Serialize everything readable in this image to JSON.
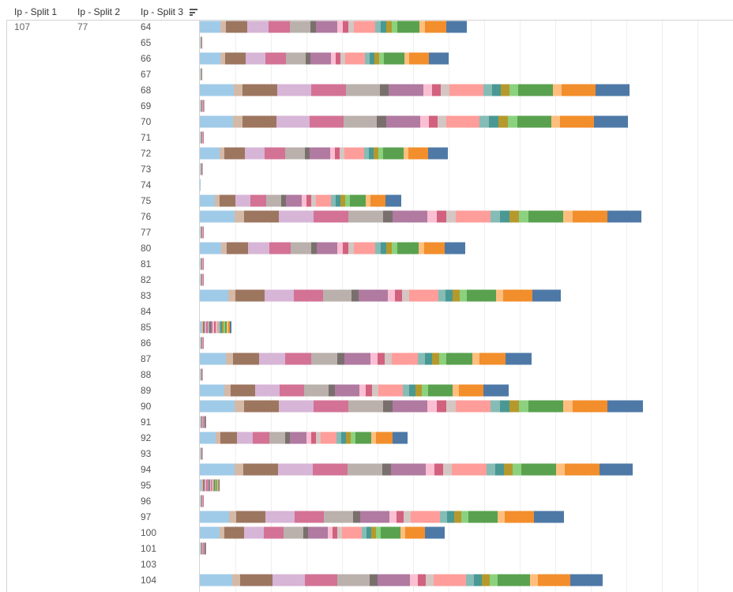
{
  "headers": {
    "col1": "Ip - Split 1",
    "col2": "Ip - Split 2",
    "col3": "Ip - Split 3",
    "sort_icon": "sort-descending-icon"
  },
  "row_header": {
    "split1": "107",
    "split2": "77"
  },
  "chart_data": {
    "type": "bar",
    "orientation": "horizontal",
    "stacked": true,
    "xlabel": "",
    "ylabel": "",
    "grid": true,
    "categories": [
      "64",
      "65",
      "66",
      "67",
      "68",
      "69",
      "70",
      "71",
      "72",
      "73",
      "74",
      "75",
      "76",
      "77",
      "80",
      "81",
      "82",
      "83",
      "84",
      "85",
      "86",
      "87",
      "88",
      "89",
      "90",
      "91",
      "92",
      "93",
      "94",
      "95",
      "96",
      "97",
      "100",
      "101",
      "103",
      "104"
    ],
    "segment_colors": [
      "#a0cbe8",
      "#d4b9a7",
      "#9d7660",
      "#d7b5d6",
      "#d37295",
      "#bab0ac",
      "#79706e",
      "#b07aa1",
      "#fabfd2",
      "#d1617e",
      "#d4c6c2",
      "#ff9d9a",
      "#86bcb6",
      "#499894",
      "#b6992d",
      "#8cd17d",
      "#59a14f",
      "#ffbe7d",
      "#f28e2b",
      "#4e79a7"
    ],
    "series_widths": [
      [
        26,
        7,
        27,
        27,
        27,
        26,
        7,
        27,
        7,
        7,
        7,
        27,
        7,
        7,
        7,
        7,
        28,
        7,
        27,
        26
      ],
      [
        1,
        1,
        1,
        0,
        0,
        0,
        0,
        0,
        0,
        0,
        0,
        0,
        0,
        0,
        0,
        0,
        0,
        0,
        0,
        0
      ],
      [
        26,
        6,
        26,
        25,
        26,
        25,
        6,
        26,
        6,
        6,
        6,
        25,
        6,
        6,
        6,
        6,
        26,
        6,
        25,
        25
      ],
      [
        1,
        1,
        1,
        0,
        0,
        0,
        0,
        0,
        0,
        0,
        0,
        0,
        0,
        0,
        0,
        0,
        0,
        0,
        0,
        0
      ],
      [
        43,
        11,
        44,
        43,
        44,
        43,
        11,
        44,
        11,
        11,
        11,
        43,
        11,
        11,
        11,
        11,
        44,
        11,
        43,
        43
      ],
      [
        1,
        1,
        1,
        1,
        1,
        1,
        0,
        0,
        0,
        0,
        0,
        0,
        0,
        0,
        0,
        0,
        0,
        0,
        0,
        0
      ],
      [
        42,
        12,
        43,
        42,
        43,
        42,
        12,
        43,
        11,
        11,
        11,
        42,
        12,
        12,
        12,
        12,
        43,
        11,
        43,
        43
      ],
      [
        1,
        1,
        1,
        1,
        1,
        0,
        0,
        0,
        0,
        0,
        0,
        0,
        0,
        0,
        0,
        0,
        0,
        0,
        0,
        0
      ],
      [
        25,
        6,
        26,
        25,
        26,
        25,
        6,
        26,
        6,
        6,
        6,
        25,
        6,
        6,
        6,
        6,
        26,
        6,
        25,
        25
      ],
      [
        1,
        1,
        1,
        1,
        0,
        0,
        0,
        0,
        0,
        0,
        0,
        0,
        0,
        0,
        0,
        0,
        0,
        0,
        0,
        0
      ],
      [
        1,
        0,
        0,
        0,
        0,
        0,
        0,
        0,
        0,
        0,
        0,
        0,
        0,
        0,
        0,
        0,
        0,
        0,
        0,
        0
      ],
      [
        19,
        6,
        20,
        19,
        20,
        19,
        6,
        20,
        6,
        6,
        6,
        19,
        6,
        6,
        6,
        6,
        20,
        6,
        19,
        20
      ],
      [
        44,
        12,
        44,
        44,
        44,
        44,
        12,
        44,
        12,
        12,
        12,
        44,
        12,
        12,
        12,
        12,
        44,
        12,
        44,
        43
      ],
      [
        1,
        1,
        1,
        1,
        1,
        0,
        0,
        0,
        0,
        0,
        0,
        0,
        0,
        0,
        0,
        0,
        0,
        0,
        0,
        0
      ],
      [
        27,
        7,
        27,
        27,
        27,
        26,
        7,
        26,
        7,
        7,
        7,
        27,
        7,
        7,
        7,
        7,
        27,
        7,
        26,
        26
      ],
      [
        1,
        1,
        1,
        1,
        1,
        0,
        0,
        0,
        0,
        0,
        0,
        0,
        0,
        0,
        0,
        0,
        0,
        0,
        0,
        0
      ],
      [
        1,
        1,
        1,
        1,
        1,
        0,
        0,
        0,
        0,
        0,
        0,
        0,
        0,
        0,
        0,
        0,
        0,
        0,
        0,
        0
      ],
      [
        36,
        9,
        37,
        37,
        37,
        36,
        9,
        37,
        9,
        9,
        9,
        37,
        9,
        9,
        9,
        9,
        37,
        9,
        37,
        36
      ],
      [
        0,
        0,
        0,
        0,
        0,
        0,
        0,
        0,
        0,
        0,
        0,
        0,
        0,
        0,
        0,
        0,
        0,
        0,
        0,
        0
      ],
      [
        2,
        2,
        2,
        2,
        2,
        2,
        2,
        2,
        2,
        2,
        2,
        2,
        2,
        2,
        2,
        2,
        2,
        2,
        2,
        2
      ],
      [
        1,
        1,
        1,
        1,
        1,
        0,
        0,
        0,
        0,
        0,
        0,
        0,
        0,
        0,
        0,
        0,
        0,
        0,
        0,
        0
      ],
      [
        33,
        9,
        33,
        33,
        33,
        33,
        9,
        33,
        9,
        9,
        9,
        33,
        9,
        9,
        9,
        9,
        33,
        9,
        33,
        33
      ],
      [
        1,
        1,
        1,
        1,
        0,
        0,
        0,
        0,
        0,
        0,
        0,
        0,
        0,
        0,
        0,
        0,
        0,
        0,
        0,
        0
      ],
      [
        31,
        8,
        31,
        31,
        31,
        31,
        8,
        31,
        8,
        8,
        8,
        31,
        8,
        8,
        8,
        8,
        31,
        8,
        31,
        32
      ],
      [
        44,
        12,
        44,
        44,
        44,
        44,
        12,
        44,
        12,
        12,
        12,
        44,
        12,
        12,
        12,
        12,
        44,
        12,
        44,
        45
      ],
      [
        1,
        1,
        1,
        1,
        1,
        1,
        1,
        1,
        0,
        0,
        0,
        0,
        0,
        0,
        0,
        0,
        0,
        0,
        0,
        0
      ],
      [
        20,
        6,
        21,
        20,
        21,
        20,
        6,
        21,
        6,
        6,
        6,
        20,
        6,
        6,
        6,
        6,
        20,
        6,
        21,
        19
      ],
      [
        1,
        1,
        1,
        1,
        0,
        0,
        0,
        0,
        0,
        0,
        0,
        0,
        0,
        0,
        0,
        0,
        0,
        0,
        0,
        0
      ],
      [
        44,
        11,
        44,
        44,
        44,
        44,
        11,
        44,
        11,
        11,
        11,
        44,
        11,
        11,
        11,
        11,
        44,
        11,
        44,
        42
      ],
      [
        2,
        2,
        2,
        2,
        2,
        1,
        1,
        1,
        1,
        1,
        1,
        1,
        1,
        1,
        1,
        1,
        1,
        1,
        1,
        1
      ],
      [
        1,
        1,
        1,
        1,
        1,
        0,
        0,
        0,
        0,
        0,
        0,
        0,
        0,
        0,
        0,
        0,
        0,
        0,
        0,
        0
      ],
      [
        37,
        9,
        37,
        37,
        37,
        37,
        9,
        37,
        9,
        9,
        9,
        37,
        9,
        9,
        9,
        9,
        37,
        9,
        37,
        38
      ],
      [
        25,
        6,
        25,
        25,
        25,
        25,
        6,
        25,
        6,
        6,
        6,
        25,
        6,
        6,
        6,
        6,
        25,
        6,
        25,
        25
      ],
      [
        1,
        1,
        1,
        1,
        1,
        1,
        1,
        1,
        0,
        0,
        0,
        0,
        0,
        0,
        0,
        0,
        0,
        0,
        0,
        0
      ],
      [
        0,
        0,
        0,
        0,
        0,
        0,
        0,
        0,
        0,
        0,
        0,
        0,
        0,
        0,
        0,
        0,
        0,
        0,
        0,
        0
      ],
      [
        41,
        10,
        41,
        41,
        41,
        41,
        10,
        41,
        10,
        10,
        10,
        41,
        10,
        10,
        10,
        10,
        41,
        10,
        41,
        41
      ]
    ]
  }
}
